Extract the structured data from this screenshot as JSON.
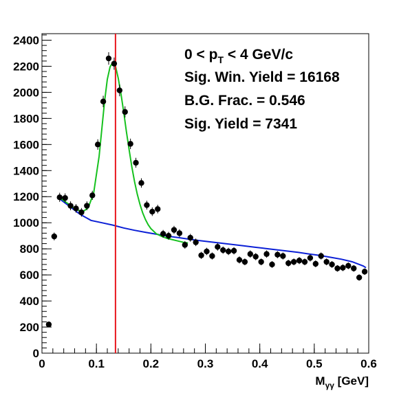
{
  "chart_data": {
    "type": "scatter",
    "title": "",
    "xlabel": {
      "main": "M",
      "sub": "γγ",
      "rest": " [GeV]"
    },
    "ylabel": "",
    "xlim": [
      0,
      0.6
    ],
    "ylim": [
      0,
      2450
    ],
    "x_ticks": [
      "0",
      "0.1",
      "0.2",
      "0.3",
      "0.4",
      "0.5",
      "0.6"
    ],
    "x_tick_values": [
      0,
      0.1,
      0.2,
      0.3,
      0.4,
      0.5,
      0.6
    ],
    "y_ticks": [
      "0",
      "200",
      "400",
      "600",
      "800",
      "1000",
      "1200",
      "1400",
      "1600",
      "1800",
      "2000",
      "2200",
      "2400"
    ],
    "y_tick_values": [
      0,
      200,
      400,
      600,
      800,
      1000,
      1200,
      1400,
      1600,
      1800,
      2000,
      2200,
      2400
    ],
    "grid": false,
    "annotations": {
      "line1": {
        "a": "0 < p",
        "sub": "T",
        "b": " < 4 GeV/c"
      },
      "line2": "Sig. Win. Yield = 16168",
      "line3": "B.G. Frac. = 0.546",
      "line4": "Sig. Yield = 7341"
    },
    "vertical_line": {
      "x": 0.135,
      "color": "#e8141b"
    },
    "series": [
      {
        "kind": "points",
        "color": "#000000",
        "x": [
          0.0125,
          0.0225,
          0.0325,
          0.0425,
          0.0525,
          0.0625,
          0.0725,
          0.0825,
          0.0925,
          0.1025,
          0.1125,
          0.1225,
          0.1325,
          0.1425,
          0.1525,
          0.1625,
          0.1725,
          0.1825,
          0.1925,
          0.2025,
          0.2125,
          0.2225,
          0.2325,
          0.2425,
          0.2525,
          0.2625,
          0.2725,
          0.2825,
          0.2925,
          0.3025,
          0.3125,
          0.3225,
          0.3325,
          0.3425,
          0.3525,
          0.3625,
          0.3725,
          0.3825,
          0.3925,
          0.4025,
          0.4125,
          0.4225,
          0.4325,
          0.4425,
          0.4525,
          0.4625,
          0.4725,
          0.4825,
          0.4925,
          0.5025,
          0.5125,
          0.5225,
          0.5325,
          0.5425,
          0.5525,
          0.5625,
          0.5725,
          0.5825,
          0.5925
        ],
        "y": [
          220,
          895,
          1195,
          1190,
          1130,
          1110,
          1080,
          1130,
          1210,
          1600,
          1930,
          2260,
          2220,
          2015,
          1850,
          1605,
          1460,
          1305,
          1135,
          1085,
          1105,
          915,
          900,
          945,
          920,
          830,
          885,
          850,
          750,
          780,
          745,
          815,
          790,
          780,
          785,
          715,
          700,
          760,
          740,
          700,
          760,
          680,
          755,
          745,
          690,
          700,
          710,
          700,
          730,
          685,
          745,
          700,
          680,
          650,
          655,
          670,
          650,
          580,
          625
        ],
        "yerr": [
          16,
          30,
          35,
          35,
          34,
          33,
          33,
          34,
          35,
          40,
          44,
          48,
          47,
          45,
          43,
          40,
          38,
          36,
          34,
          33,
          33,
          30,
          30,
          31,
          30,
          29,
          30,
          29,
          27,
          28,
          27,
          29,
          28,
          28,
          28,
          27,
          26,
          28,
          27,
          26,
          28,
          26,
          27,
          27,
          26,
          26,
          27,
          26,
          27,
          26,
          27,
          26,
          26,
          25,
          26,
          26,
          25,
          24,
          25
        ]
      },
      {
        "kind": "line",
        "color": "#0b1fd6",
        "x": [
          0.03,
          0.05,
          0.07,
          0.09,
          0.11,
          0.13,
          0.15,
          0.17,
          0.19,
          0.21,
          0.23,
          0.25,
          0.27,
          0.29,
          0.31,
          0.33,
          0.35,
          0.37,
          0.39,
          0.41,
          0.43,
          0.45,
          0.47,
          0.49,
          0.51,
          0.53,
          0.55,
          0.57,
          0.59,
          0.595
        ],
        "y": [
          1190,
          1128,
          1065,
          1018,
          1000,
          982,
          960,
          942,
          927,
          912,
          898,
          886,
          874,
          863,
          853,
          843,
          833,
          823,
          813,
          803,
          793,
          783,
          773,
          761,
          749,
          735,
          720,
          700,
          668,
          655
        ]
      },
      {
        "kind": "line",
        "color": "#15c11d",
        "x": [
          0.035,
          0.045,
          0.055,
          0.065,
          0.075,
          0.085,
          0.095,
          0.105,
          0.115,
          0.12,
          0.125,
          0.13,
          0.135,
          0.14,
          0.145,
          0.15,
          0.155,
          0.16,
          0.165,
          0.17,
          0.175,
          0.18,
          0.185,
          0.19,
          0.195,
          0.2,
          0.21,
          0.22,
          0.23,
          0.24,
          0.25,
          0.26,
          0.268
        ],
        "y": [
          1185,
          1155,
          1125,
          1098,
          1085,
          1115,
          1230,
          1510,
          1930,
          2100,
          2195,
          2230,
          2200,
          2110,
          1990,
          1850,
          1700,
          1560,
          1430,
          1315,
          1220,
          1140,
          1075,
          1025,
          985,
          955,
          915,
          895,
          880,
          870,
          860,
          850,
          845
        ]
      }
    ]
  }
}
